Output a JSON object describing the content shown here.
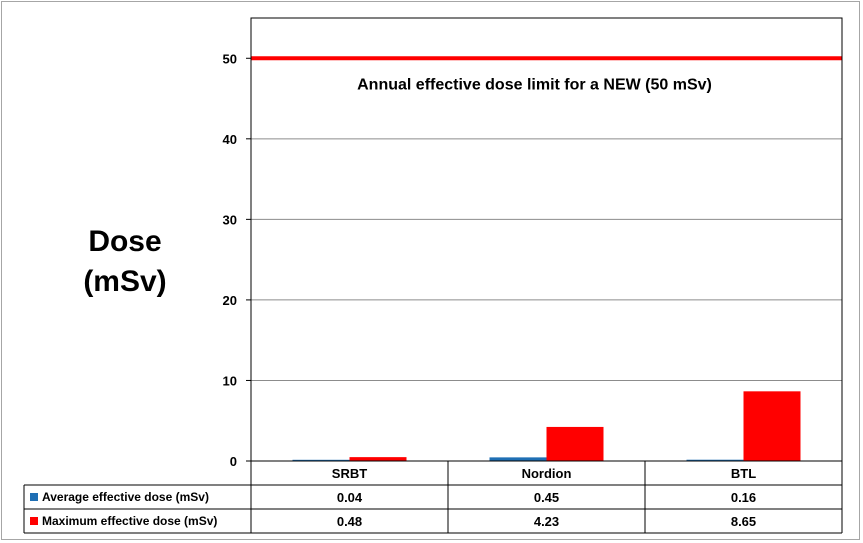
{
  "chart_data": {
    "type": "bar",
    "ylabel_lines": [
      "Dose",
      "(mSv)"
    ],
    "categories": [
      "SRBT",
      "Nordion",
      "BTL"
    ],
    "yticks": [
      "0",
      "10",
      "20",
      "30",
      "40",
      "50"
    ],
    "ylim": [
      0,
      55
    ],
    "grid": true,
    "series": [
      {
        "name": "Average effective dose (mSv)",
        "color": "#1f6fb4",
        "values": [
          0.04,
          0.45,
          0.16
        ],
        "labels": [
          "0.04",
          "0.45",
          "0.16"
        ]
      },
      {
        "name": "Maximum effective dose (mSv)",
        "color": "#ff0000",
        "values": [
          0.48,
          4.23,
          8.65
        ],
        "labels": [
          "0.48",
          "4.23",
          "8.65"
        ]
      }
    ],
    "reference_line": {
      "value": 50,
      "color": "#ff0000",
      "label": "Annual effective dose limit for a NEW (50 mSv)"
    },
    "legend_placement": "data-table-bottom"
  }
}
